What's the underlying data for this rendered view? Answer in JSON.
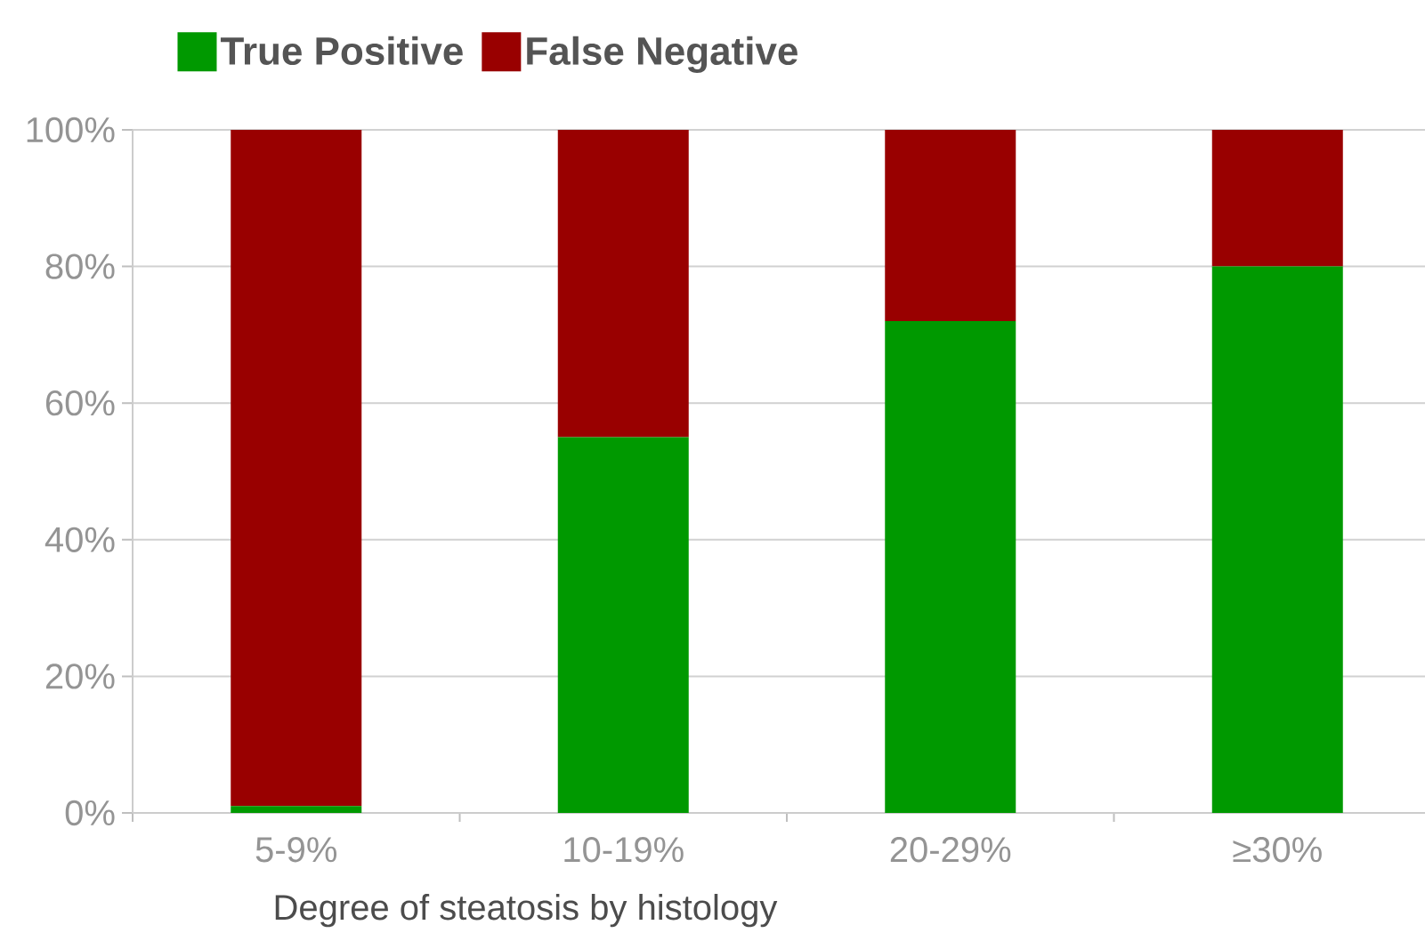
{
  "chart_data": {
    "type": "bar",
    "stacked": true,
    "xlabel": "Degree of steatosis by histology",
    "categories": [
      "5-9%",
      "10-19%",
      "20-29%",
      "≥30%"
    ],
    "series": [
      {
        "name": "True Positive",
        "color": "#009900",
        "values": [
          1,
          55,
          72,
          80
        ]
      },
      {
        "name": "False Negative",
        "color": "#990000",
        "values": [
          99,
          45,
          28,
          20
        ]
      }
    ],
    "ylim": [
      0,
      100
    ],
    "yticks": [
      {
        "value": 0,
        "label": "0%"
      },
      {
        "value": 20,
        "label": "20%"
      },
      {
        "value": 40,
        "label": "40%"
      },
      {
        "value": 60,
        "label": "60%"
      },
      {
        "value": 80,
        "label": "80%"
      },
      {
        "value": 100,
        "label": "100%"
      }
    ],
    "grid": "y",
    "legend": "top"
  }
}
